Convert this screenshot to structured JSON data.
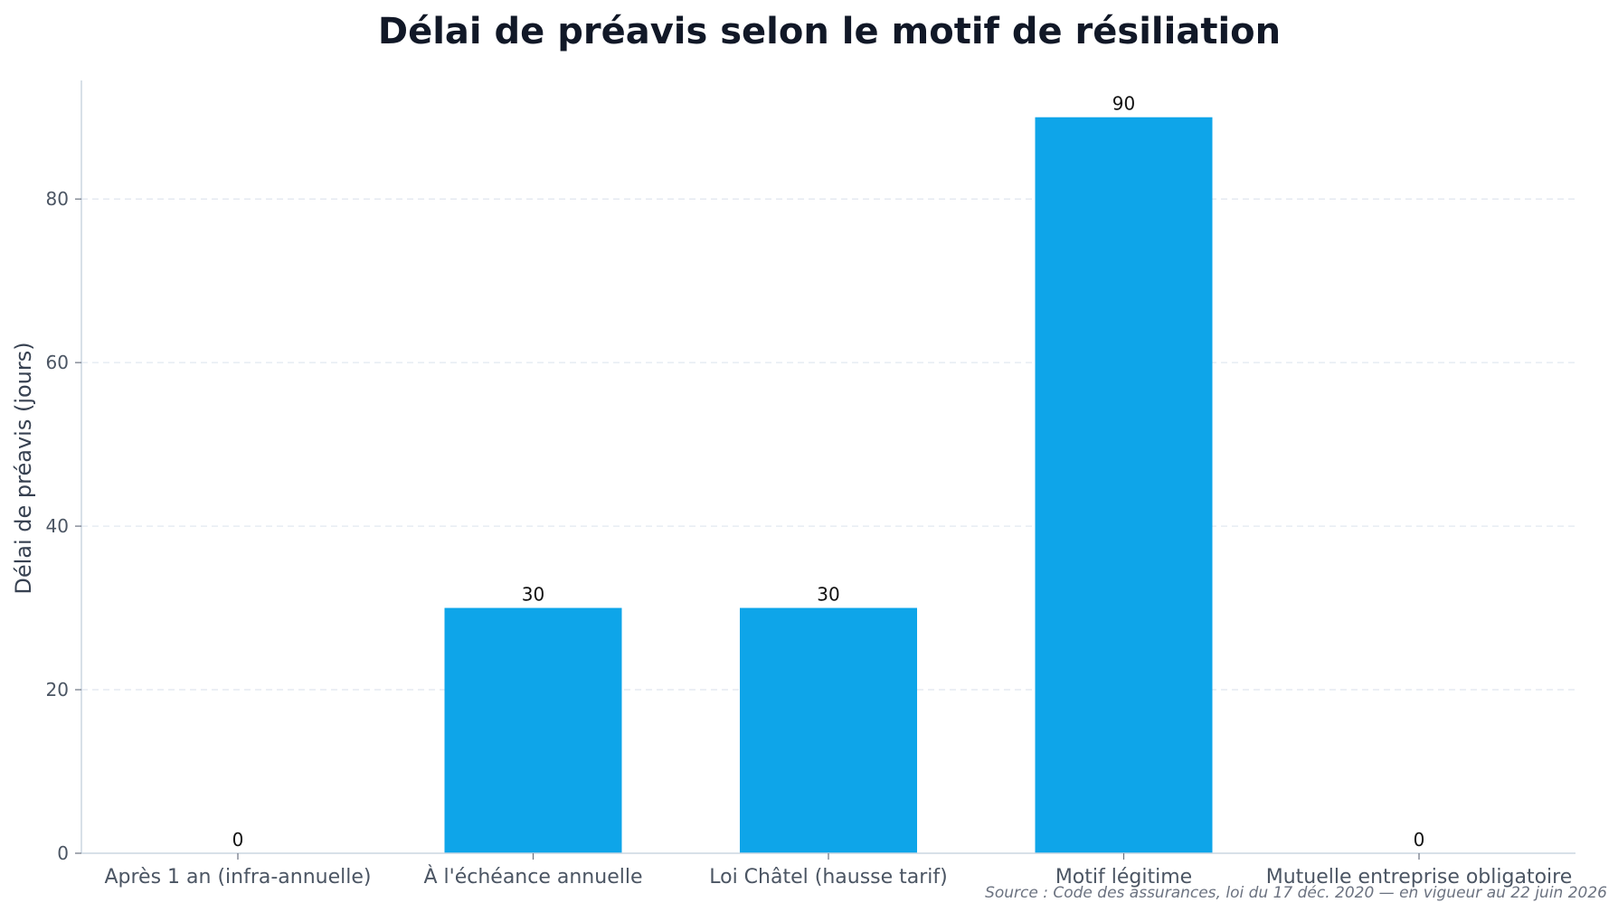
{
  "chart_data": {
    "type": "bar",
    "title": "Délai de préavis selon le motif de résiliation",
    "xlabel": "",
    "ylabel": "Délai de préavis (jours)",
    "categories": [
      "Après 1 an (infra-annuelle)",
      "À l'échéance annuelle",
      "Loi Châtel (hausse tarif)",
      "Motif légitime",
      "Mutuelle entreprise obligatoire"
    ],
    "values": [
      0,
      30,
      30,
      90,
      0
    ],
    "data_labels": [
      "0",
      "30",
      "30",
      "90",
      "0"
    ],
    "ylim": [
      0,
      94.5
    ],
    "yticks": [
      0,
      20,
      40,
      60,
      80
    ],
    "grid": "horizontal dashed",
    "legend": "none",
    "source": "Source : Code des assurances, loi du 17 déc. 2020 — en vigueur au 22 juin 2026",
    "colors": {
      "bar": "#0ea5e9",
      "title": "#111827",
      "axis": "#cbd5e1",
      "grid": "#e2e8f0"
    }
  }
}
